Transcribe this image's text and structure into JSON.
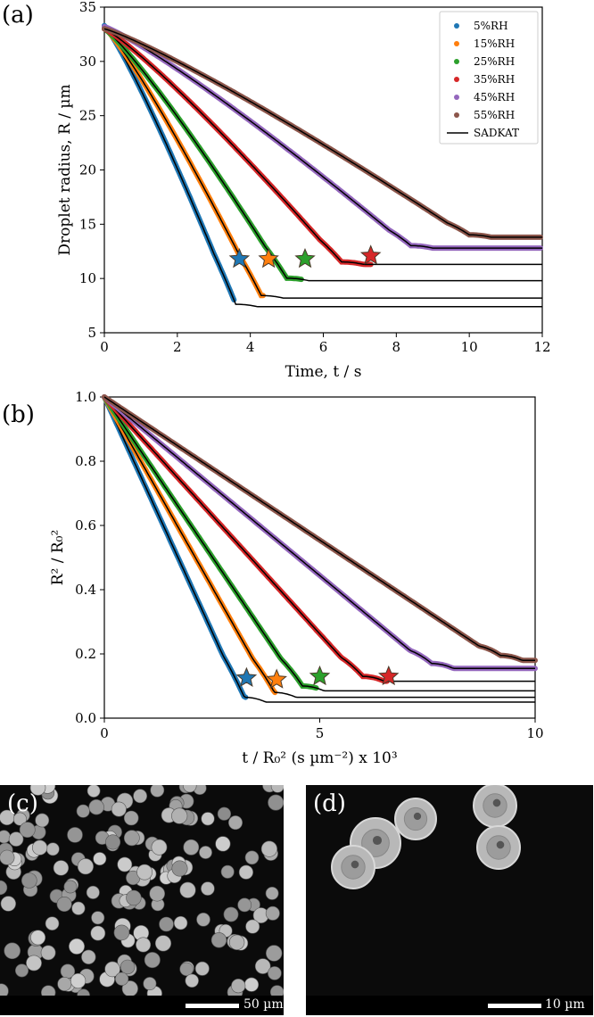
{
  "panel_labels": {
    "a": "(a)",
    "b": "(b)",
    "c": "(c)",
    "d": "(d)"
  },
  "chart_data": [
    {
      "type": "line",
      "panel": "(a)",
      "xlabel": "Time, t / s",
      "ylabel": "Droplet radius, R / µm",
      "xlim": [
        0,
        12
      ],
      "ylim": [
        5,
        35
      ],
      "xticks": [
        0,
        2,
        4,
        6,
        8,
        10,
        12
      ],
      "yticks": [
        5,
        10,
        15,
        20,
        25,
        30,
        35
      ],
      "series": [
        {
          "name": "5%RH",
          "color": "#1f77b4",
          "r0": 33.3,
          "rf": 7.4,
          "t_end": 3.6,
          "t_exp_end": 3.55,
          "star": [
            3.7,
            11.8
          ]
        },
        {
          "name": "15%RH",
          "color": "#ff7f0e",
          "r0": 33.1,
          "rf": 8.2,
          "t_end": 4.3,
          "t_exp_end": 4.35,
          "star": [
            4.5,
            11.8
          ]
        },
        {
          "name": "25%RH",
          "color": "#2ca02c",
          "r0": 33.0,
          "rf": 9.8,
          "t_end": 5.0,
          "t_exp_end": 5.4,
          "star": [
            5.5,
            11.8
          ]
        },
        {
          "name": "35%RH",
          "color": "#d62728",
          "r0": 33.0,
          "rf": 11.3,
          "t_end": 6.5,
          "t_exp_end": 7.3,
          "star": [
            7.3,
            12.1
          ]
        },
        {
          "name": "45%RH",
          "color": "#9467bd",
          "r0": 33.2,
          "rf": 12.8,
          "t_end": 8.4,
          "t_exp_end": 12.0,
          "star": null
        },
        {
          "name": "55%RH",
          "color": "#8c564b",
          "r0": 33.0,
          "rf": 13.8,
          "t_end": 10.0,
          "t_exp_end": 12.0,
          "star": null
        }
      ],
      "model_legend": "SADKAT",
      "model_color": "#000000",
      "legend_position": "top-right"
    },
    {
      "type": "line",
      "panel": "(b)",
      "xlabel": "t / R₀² (s µm⁻²) x 10³",
      "ylabel": "R² / R₀²",
      "xlim": [
        0,
        10
      ],
      "ylim": [
        0.0,
        1.0
      ],
      "xticks": [
        0,
        5,
        10
      ],
      "yticks": [
        "0.0",
        "0.2",
        "0.4",
        "0.6",
        "0.8",
        "1.0"
      ],
      "series": [
        {
          "name": "5%RH",
          "color": "#1f77b4",
          "yf": 0.05,
          "x_end": 3.25,
          "x_exp_end": 3.3,
          "star": [
            3.3,
            0.125
          ]
        },
        {
          "name": "15%RH",
          "color": "#ff7f0e",
          "yf": 0.065,
          "x_end": 3.95,
          "x_exp_end": 4.0,
          "star": [
            4.0,
            0.12
          ]
        },
        {
          "name": "25%RH",
          "color": "#2ca02c",
          "yf": 0.085,
          "x_end": 4.6,
          "x_exp_end": 4.95,
          "star": [
            5.0,
            0.13
          ]
        },
        {
          "name": "35%RH",
          "color": "#d62728",
          "yf": 0.115,
          "x_end": 6.0,
          "x_exp_end": 6.6,
          "star": [
            6.6,
            0.13
          ]
        },
        {
          "name": "45%RH",
          "color": "#9467bd",
          "yf": 0.155,
          "x_end": 7.6,
          "x_exp_end": 10.0,
          "star": null
        },
        {
          "name": "55%RH",
          "color": "#8c564b",
          "yf": 0.18,
          "x_end": 9.2,
          "x_exp_end": 10.0,
          "star": null
        }
      ]
    }
  ],
  "images": {
    "c": {
      "scale_text": "50 µm"
    },
    "d": {
      "scale_text": "10 µm"
    }
  }
}
